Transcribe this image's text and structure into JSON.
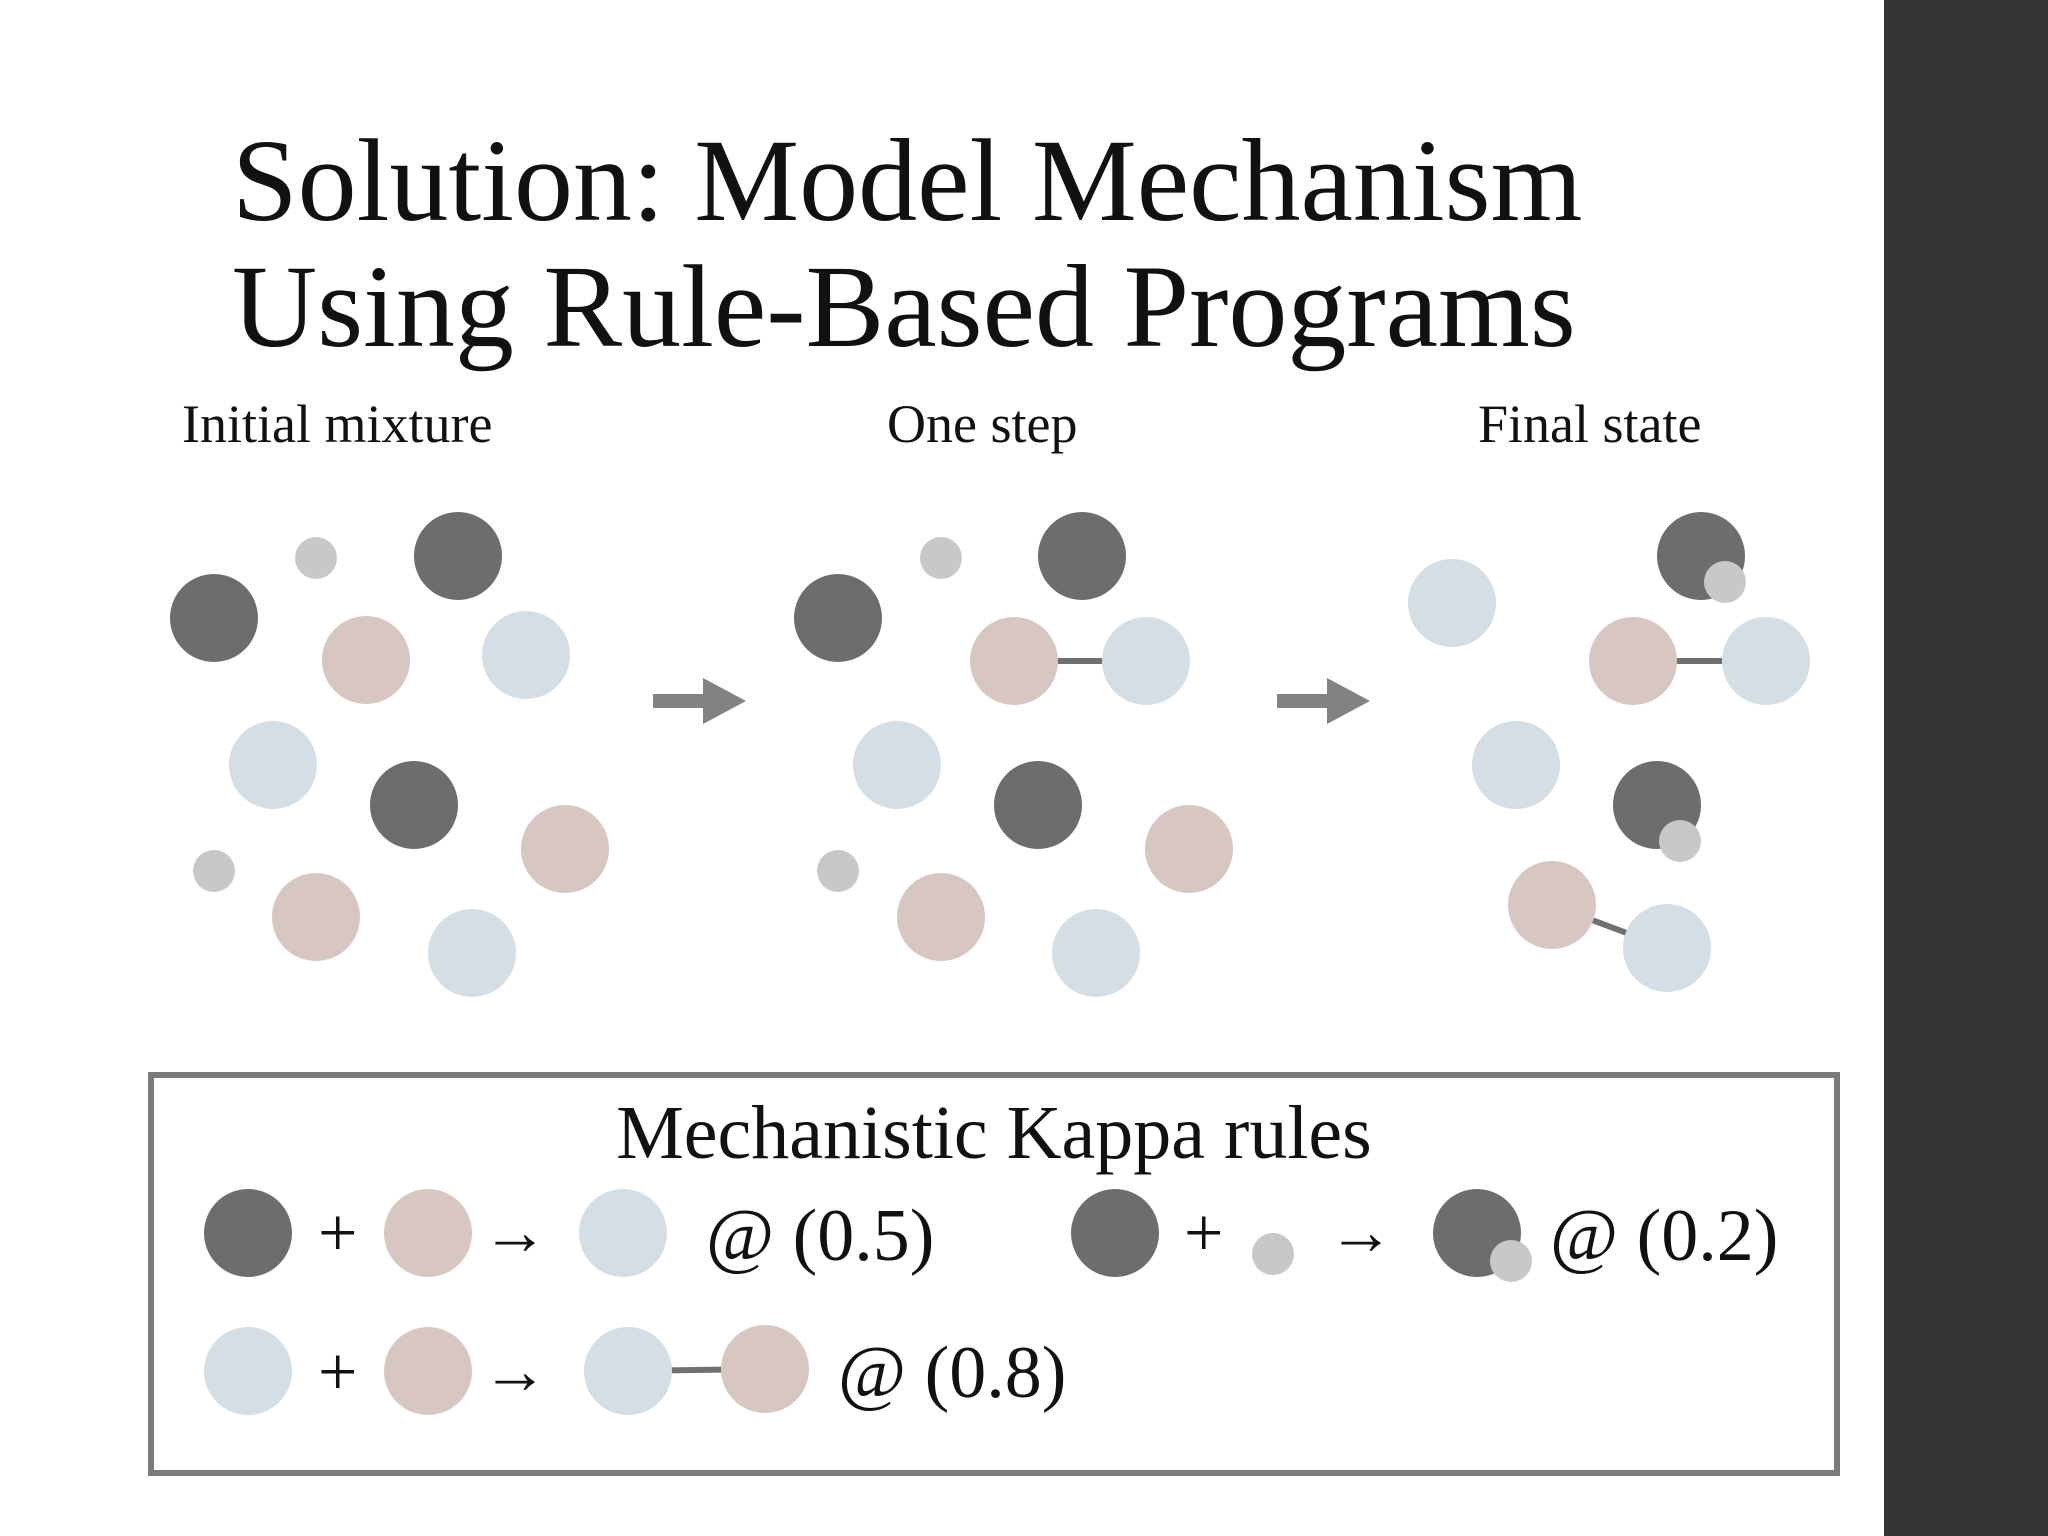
{
  "slide": {
    "title_line1": "Solution: Model Mechanism",
    "title_line2": "Using Rule-Based Programs"
  },
  "phases": {
    "initial": "Initial mixture",
    "step": "One step",
    "final": "Final state"
  },
  "colors": {
    "dark": "#6d6c6f",
    "pink": "#d8c6c2",
    "blue": "#d4dee4",
    "small": "#c8c8ca",
    "bond": "#707070",
    "arrow": "#828282",
    "sidebar": "#333235"
  },
  "rules": {
    "title": "Mechanistic Kappa rules",
    "plus": "+",
    "arrow": "→",
    "rule1_rate": "@ (0.5)",
    "rule2_rate": "@ (0.2)",
    "rule3_rate": "@ (0.8)"
  }
}
